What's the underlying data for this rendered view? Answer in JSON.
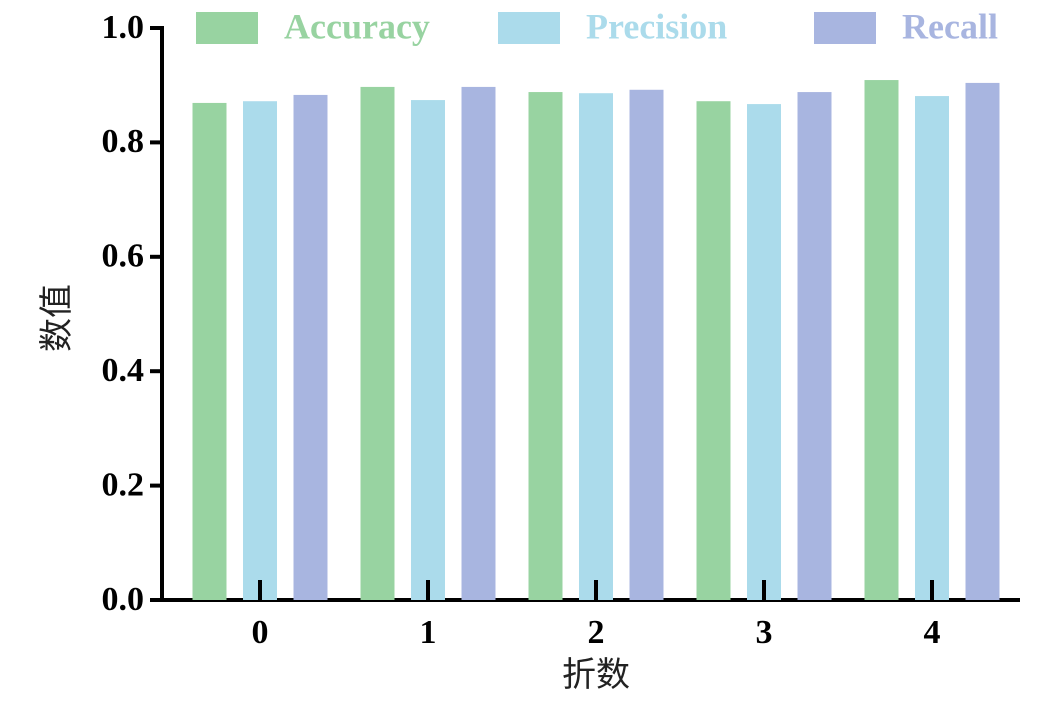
{
  "chart_data": {
    "type": "bar",
    "x_label": "折数",
    "y_label": "数值",
    "categories": [
      "0",
      "1",
      "2",
      "3",
      "4"
    ],
    "series": [
      {
        "name": "Accuracy",
        "color": "#98d3a1",
        "values": [
          0.869,
          0.897,
          0.888,
          0.872,
          0.909
        ]
      },
      {
        "name": "Precision",
        "color": "#abdbeb",
        "values": [
          0.872,
          0.874,
          0.886,
          0.867,
          0.881
        ]
      },
      {
        "name": "Recall",
        "color": "#a8b5e0",
        "values": [
          0.883,
          0.897,
          0.892,
          0.888,
          0.904
        ]
      }
    ],
    "ylim": [
      0,
      1.0
    ],
    "yticks": [
      {
        "value": 0,
        "label": "0.0"
      },
      {
        "value": 0.2,
        "label": "0.2"
      },
      {
        "value": 0.4,
        "label": "0.4"
      },
      {
        "value": 0.6,
        "label": "0.6"
      },
      {
        "value": 0.8,
        "label": "0.8"
      },
      {
        "value": 1.0,
        "label": "1.0"
      }
    ],
    "grid": false
  }
}
